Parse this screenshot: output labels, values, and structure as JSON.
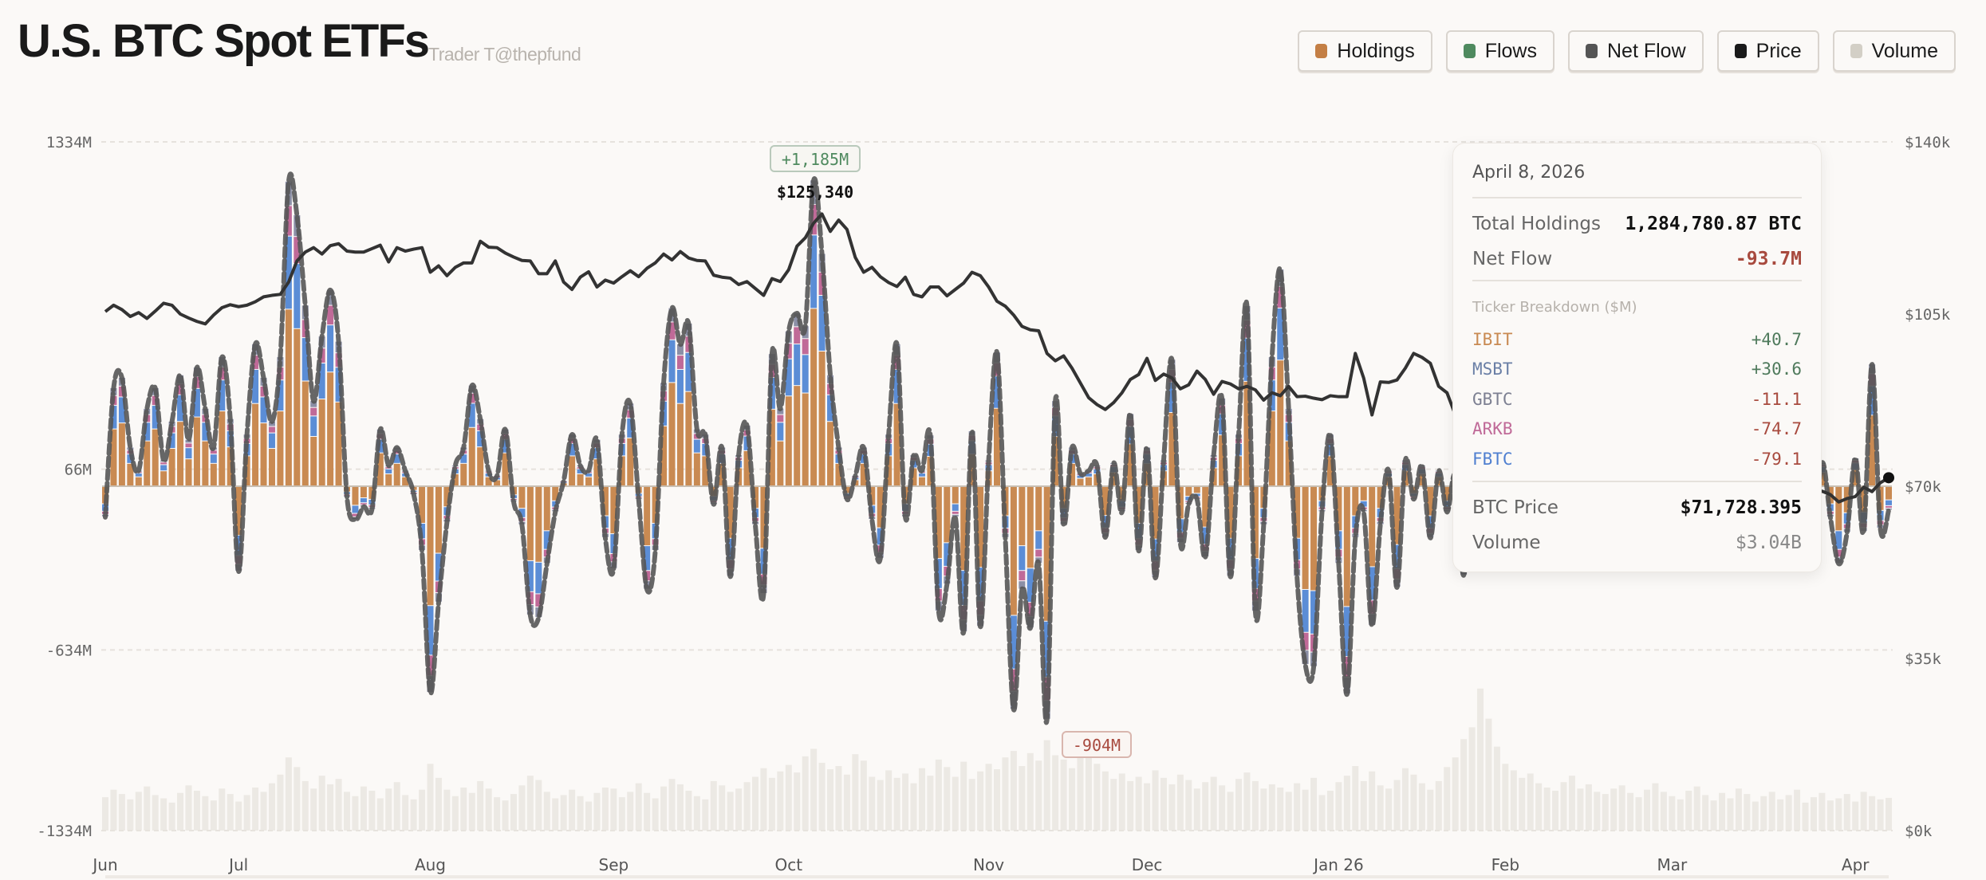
{
  "header": {
    "title": "U.S. BTC Spot ETFs",
    "subtitle": "Trader T@thepfund"
  },
  "legend": [
    {
      "label": "Holdings",
      "color": "#c47f45"
    },
    {
      "label": "Flows",
      "color": "#4f8a5f"
    },
    {
      "label": "Net Flow",
      "color": "#555555"
    },
    {
      "label": "Price",
      "color": "#1a1a1a"
    },
    {
      "label": "Volume",
      "color": "#d3cfc6"
    }
  ],
  "ticker_colors": {
    "IBIT": "#c98a52",
    "FBTC": "#5b8dd6",
    "ARKB": "#c06a98",
    "GBTC": "#8b8fa6",
    "MSBT": "#6a7fa6"
  },
  "annotations": {
    "max_flow": "+1,185M",
    "max_price": "$125,340",
    "min_flow": "-904M"
  },
  "tooltip": {
    "date": "April 8, 2026",
    "total_holdings_label": "Total Holdings",
    "total_holdings": "1,284,780.87 BTC",
    "net_flow_label": "Net Flow",
    "net_flow": "-93.7M",
    "breakdown_label": "Ticker Breakdown ($M)",
    "tickers": [
      {
        "name": "IBIT",
        "value": "+40.7",
        "color": "#c98a52"
      },
      {
        "name": "MSBT",
        "value": "+30.6",
        "color": "#6a7fa6"
      },
      {
        "name": "GBTC",
        "value": "-11.1",
        "color": "#7d8092"
      },
      {
        "name": "ARKB",
        "value": "-74.7",
        "color": "#c06a98"
      },
      {
        "name": "FBTC",
        "value": "-79.1",
        "color": "#4f7fd0"
      }
    ],
    "price_label": "BTC Price",
    "price": "$71,728.395",
    "volume_label": "Volume",
    "volume": "$3.04B"
  },
  "chart_data": {
    "type": "bar",
    "left_axis": {
      "ticks": [
        "1334M",
        "66M",
        "-634M",
        "-1334M"
      ],
      "range_musd": [
        -1334,
        1334
      ]
    },
    "right_axis": {
      "ticks": [
        "$140k",
        "$105k",
        "$70k",
        "$35k",
        "$0k"
      ],
      "range_kusd": [
        0,
        140
      ]
    },
    "x_ticks": [
      {
        "label": "Jun",
        "index": 0
      },
      {
        "label": "Jul",
        "index": 16
      },
      {
        "label": "Aug",
        "index": 39
      },
      {
        "label": "Sep",
        "index": 61
      },
      {
        "label": "Oct",
        "index": 82
      },
      {
        "label": "Nov",
        "index": 106
      },
      {
        "label": "Dec",
        "index": 125
      },
      {
        "label": "Jan 26",
        "index": 148
      },
      {
        "label": "Feb",
        "index": 168
      },
      {
        "label": "Mar",
        "index": 188
      },
      {
        "label": "Apr",
        "index": 210
      }
    ],
    "grid": true,
    "net_flow_musd": [
      -120,
      380,
      420,
      150,
      60,
      300,
      380,
      100,
      250,
      430,
      180,
      460,
      300,
      150,
      500,
      260,
      -330,
      200,
      550,
      420,
      250,
      500,
      1180,
      1050,
      700,
      330,
      580,
      760,
      560,
      -40,
      -130,
      -80,
      -90,
      220,
      80,
      150,
      60,
      -30,
      -250,
      -800,
      -450,
      -140,
      80,
      150,
      390,
      260,
      60,
      40,
      220,
      -60,
      -150,
      -500,
      -510,
      -300,
      -100,
      20,
      200,
      80,
      60,
      180,
      -200,
      -320,
      200,
      320,
      -50,
      -400,
      -250,
      400,
      690,
      550,
      630,
      220,
      200,
      -70,
      150,
      -350,
      120,
      235,
      -150,
      -417,
      512,
      300,
      600,
      670,
      620,
      1185,
      900,
      430,
      150,
      -50,
      40,
      150,
      -130,
      -280,
      200,
      550,
      -120,
      120,
      60,
      197,
      -485,
      -380,
      -120,
      -565,
      213,
      -544,
      100,
      518,
      -200,
      -865,
      -400,
      -550,
      -300,
      -904,
      330,
      -150,
      150,
      50,
      60,
      80,
      -198,
      90,
      -100,
      280,
      -250,
      150,
      -355,
      100,
      490,
      -220,
      -70,
      -50,
      -275,
      120,
      340,
      -350,
      200,
      698,
      -485,
      -150,
      500,
      840,
      300,
      -350,
      -692,
      -700,
      -100,
      200,
      -300,
      -806,
      -200,
      -100,
      -540,
      -150,
      60,
      -392,
      100,
      -50,
      80,
      -200,
      60,
      -100,
      40,
      -345,
      90,
      -60,
      120,
      -150,
      200,
      -80,
      50,
      -120,
      150,
      -60,
      70,
      -100,
      60,
      90,
      -40,
      120,
      -80,
      50,
      -60,
      140,
      -120,
      80,
      -30,
      100,
      -150,
      60,
      40,
      -200,
      80,
      -70,
      110,
      -50,
      90,
      -120,
      60,
      30,
      -80,
      120,
      -60,
      40,
      -180,
      -250,
      90,
      -120,
      -300,
      -180,
      108,
      -176,
      472,
      -164,
      -93.7
    ],
    "price_kusd": [
      105.5,
      106.8,
      105.9,
      104.5,
      105.3,
      104.1,
      105.6,
      107.2,
      106.8,
      105.0,
      104.2,
      103.5,
      103.0,
      104.8,
      106.3,
      106.9,
      106.5,
      106.8,
      107.5,
      108.5,
      108.8,
      109.0,
      111.5,
      115.8,
      117.6,
      118.5,
      117.2,
      118.9,
      119.3,
      117.8,
      117.6,
      117.6,
      118.3,
      119.0,
      115.6,
      118.5,
      117.8,
      118.2,
      118.5,
      113.5,
      114.8,
      112.8,
      114.5,
      115.4,
      115.4,
      119.8,
      118.6,
      118.5,
      117.4,
      116.6,
      115.9,
      115.8,
      113.2,
      113.2,
      115.8,
      111.5,
      110.0,
      112.5,
      113.6,
      110.5,
      111.9,
      111.3,
      112.6,
      113.8,
      112.6,
      114.3,
      115.4,
      117.2,
      116.0,
      117.7,
      116.4,
      115.9,
      115.8,
      112.9,
      112.5,
      112.3,
      111.0,
      111.6,
      110.2,
      108.8,
      112.2,
      111.6,
      114.0,
      118.8,
      120.5,
      123.5,
      125.34,
      121.8,
      124.1,
      122.2,
      116.5,
      113.5,
      114.5,
      112.6,
      111.4,
      110.6,
      112.5,
      109.0,
      108.5,
      110.5,
      110.5,
      108.7,
      110.0,
      111.3,
      113.5,
      112.8,
      110.5,
      107.6,
      106.6,
      104.8,
      102.5,
      101.8,
      101.6,
      97.0,
      95.5,
      96.5,
      94.0,
      91.0,
      88.0,
      86.6,
      85.6,
      87.0,
      89.0,
      91.7,
      92.7,
      96.0,
      91.5,
      92.8,
      92.0,
      89.8,
      90.6,
      93.4,
      91.7,
      88.7,
      91.3,
      90.8,
      89.8,
      90.3,
      89.6,
      87.5,
      89.0,
      88.4,
      90.3,
      88.2,
      88.3,
      87.9,
      87.6,
      88.4,
      88.2,
      88.2,
      97.0,
      92.0,
      84.5,
      91.2,
      91.1,
      91.6,
      94.0,
      97.0,
      96.2,
      95.0,
      90.3,
      89.0,
      84.5,
      78.0,
      75.5,
      70.0,
      63.5,
      68.5,
      69.5,
      70.2,
      68.0,
      68.8,
      67.5,
      69.0,
      66.8,
      67.9,
      68.5,
      67.0,
      65.8,
      66.9,
      68.0,
      67.2,
      65.5,
      66.3,
      68.4,
      70.1,
      69.5,
      71.2,
      73.0,
      72.1,
      70.5,
      69.8,
      71.5,
      70.6,
      68.9,
      70.0,
      68.3,
      66.9,
      67.4,
      68.5,
      69.9,
      70.8,
      68.6,
      66.5,
      67.0,
      68.2,
      69.0,
      68.3,
      66.8,
      67.5,
      67.9,
      69.8,
      68.9,
      70.7,
      71.728
    ],
    "volume_busd": [
      3.1,
      3.8,
      3.4,
      2.9,
      3.6,
      4.1,
      3.3,
      3.0,
      2.6,
      3.5,
      4.2,
      3.7,
      3.2,
      2.8,
      3.9,
      3.4,
      2.7,
      3.3,
      4.0,
      3.6,
      4.4,
      5.2,
      6.8,
      5.9,
      4.6,
      3.9,
      5.1,
      4.3,
      4.8,
      3.6,
      3.2,
      4.1,
      3.7,
      3.0,
      3.9,
      4.5,
      3.3,
      2.9,
      3.8,
      6.2,
      4.9,
      3.8,
      3.2,
      4.0,
      3.5,
      4.6,
      3.9,
      3.1,
      2.8,
      3.4,
      4.2,
      5.1,
      4.7,
      3.6,
      3.0,
      3.3,
      3.8,
      3.2,
      2.7,
      3.5,
      4.0,
      3.9,
      3.1,
      3.6,
      4.4,
      3.5,
      3.0,
      4.1,
      4.8,
      4.3,
      3.7,
      3.2,
      2.9,
      4.6,
      4.2,
      3.6,
      3.9,
      4.5,
      5.0,
      5.8,
      4.9,
      5.5,
      6.1,
      5.4,
      6.9,
      7.6,
      6.3,
      5.7,
      6.0,
      5.2,
      7.1,
      6.5,
      5.0,
      4.7,
      5.6,
      4.9,
      5.3,
      4.4,
      5.8,
      5.1,
      6.6,
      5.9,
      5.0,
      6.4,
      4.8,
      5.5,
      6.2,
      5.7,
      6.8,
      7.4,
      6.0,
      7.2,
      6.5,
      8.4,
      7.0,
      6.6,
      5.8,
      6.9,
      7.7,
      6.2,
      5.5,
      4.8,
      5.3,
      4.6,
      5.0,
      4.4,
      5.6,
      4.9,
      4.3,
      5.2,
      4.7,
      3.9,
      4.5,
      5.0,
      4.2,
      3.6,
      4.8,
      5.4,
      4.6,
      3.9,
      4.3,
      4.0,
      3.6,
      4.4,
      3.8,
      4.9,
      3.3,
      3.7,
      4.5,
      5.1,
      6.0,
      4.6,
      5.5,
      4.2,
      3.9,
      4.7,
      5.8,
      5.2,
      4.4,
      3.8,
      4.6,
      5.9,
      6.8,
      8.5,
      9.6,
      13.2,
      10.4,
      7.8,
      6.2,
      5.6,
      4.9,
      5.3,
      4.4,
      4.0,
      3.7,
      4.5,
      5.1,
      3.9,
      4.3,
      3.6,
      3.4,
      3.9,
      4.2,
      3.5,
      3.1,
      3.8,
      4.4,
      3.6,
      3.2,
      2.9,
      3.7,
      4.1,
      3.3,
      2.8,
      3.5,
      3.0,
      3.9,
      3.4,
      2.7,
      3.2,
      3.6,
      2.9,
      3.3,
      3.8,
      2.6,
      3.1,
      3.5,
      2.8,
      3.0,
      3.4,
      2.7,
      3.6,
      3.2,
      2.9,
      3.04
    ]
  }
}
